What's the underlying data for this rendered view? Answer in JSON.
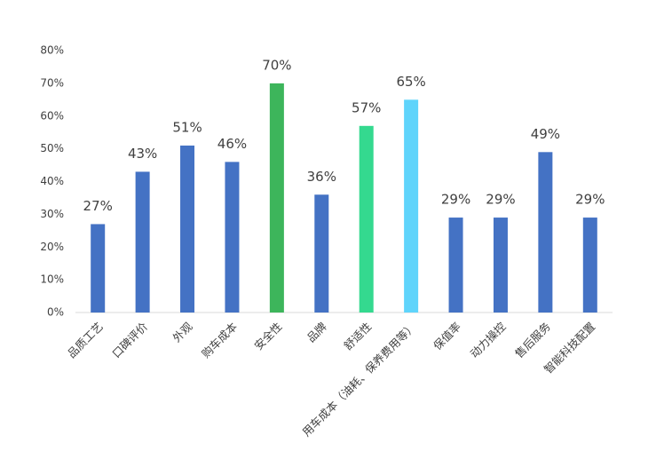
{
  "chart_data": {
    "type": "bar",
    "categories": [
      "品质工艺",
      "口碑评价",
      "外观",
      "购车成本",
      "安全性",
      "品牌",
      "舒适性",
      "用车成本（油耗、保养费用等）",
      "保值率",
      "动力操控",
      "售后服务",
      "智能科技配置"
    ],
    "values": [
      27,
      43,
      51,
      46,
      70,
      36,
      57,
      65,
      29,
      29,
      49,
      29
    ],
    "value_labels": [
      "27%",
      "43%",
      "51%",
      "46%",
      "70%",
      "36%",
      "57%",
      "65%",
      "29%",
      "29%",
      "49%",
      "29%"
    ],
    "colors": [
      "#4472c4",
      "#4472c4",
      "#4472c4",
      "#4472c4",
      "#3db55b",
      "#4472c4",
      "#34d98f",
      "#5fd4fb",
      "#4472c4",
      "#4472c4",
      "#4472c4",
      "#4472c4"
    ],
    "ylim": [
      0,
      80
    ],
    "yticks": [
      {
        "value": 0,
        "label": "0%"
      },
      {
        "value": 10,
        "label": "10%"
      },
      {
        "value": 20,
        "label": "20%"
      },
      {
        "value": 30,
        "label": "30%"
      },
      {
        "value": 40,
        "label": "40%"
      },
      {
        "value": 50,
        "label": "50%"
      },
      {
        "value": 60,
        "label": "60%"
      },
      {
        "value": 70,
        "label": "70%"
      },
      {
        "value": 80,
        "label": "80%"
      }
    ],
    "grid": false
  }
}
